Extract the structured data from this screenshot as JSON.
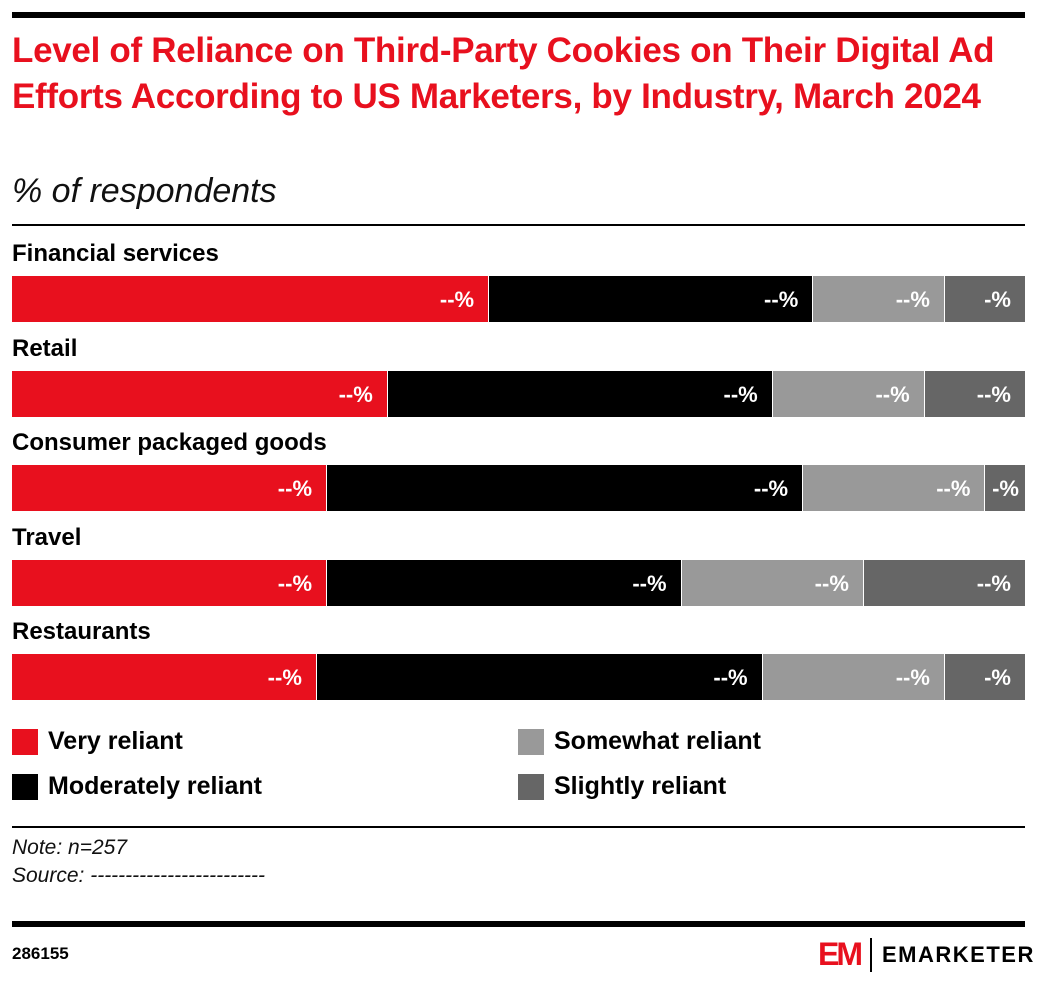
{
  "title": "Level of Reliance on Third-Party Cookies on Their Digital Ad Efforts According to US Marketers, by Industry, March 2024",
  "subtitle": "% of respondents",
  "chart_data": {
    "type": "bar",
    "orientation": "horizontal-stacked-100",
    "categories": [
      "Financial services",
      "Retail",
      "Consumer packaged goods",
      "Travel",
      "Restaurants"
    ],
    "series": [
      {
        "name": "Very reliant",
        "color": "#e8101e",
        "values": [
          47,
          37,
          31,
          31,
          30
        ],
        "labels": [
          "--%",
          "--%",
          "--%",
          "--%",
          "--%"
        ]
      },
      {
        "name": "Moderately reliant",
        "color": "#000000",
        "values": [
          32,
          38,
          47,
          35,
          44
        ],
        "labels": [
          "--%",
          "--%",
          "--%",
          "--%",
          "--%"
        ]
      },
      {
        "name": "Somewhat reliant",
        "color": "#999999",
        "values": [
          13,
          15,
          18,
          18,
          18
        ],
        "labels": [
          "--%",
          "--%",
          "--%",
          "--%",
          "--%"
        ]
      },
      {
        "name": "Slightly reliant",
        "color": "#666666",
        "values": [
          8,
          10,
          4,
          16,
          8
        ],
        "labels": [
          "-%",
          "--%",
          "-%",
          "--%",
          "-%"
        ]
      }
    ],
    "legend": "bottom"
  },
  "note": "Note: n=257",
  "source": "Source: -------------------------",
  "chart_id": "286155",
  "brand": "EMARKETER"
}
